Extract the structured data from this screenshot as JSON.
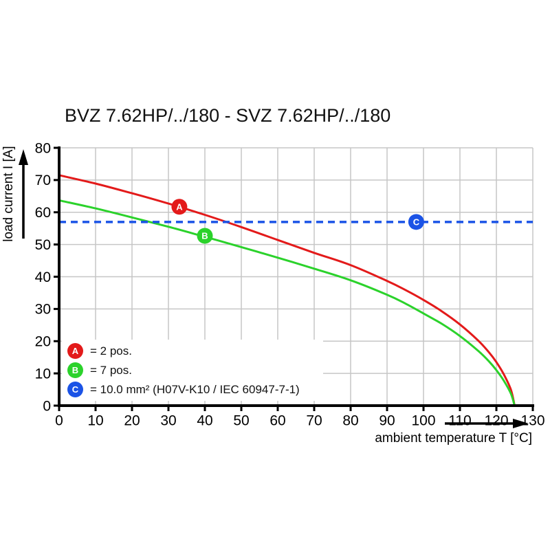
{
  "chart_data": {
    "type": "line",
    "title": "BVZ 7.62HP/../180 - SVZ 7.62HP/../180",
    "xlabel": "ambient temperature T [°C]",
    "ylabel": "load current I [A]",
    "xlim": [
      0,
      130
    ],
    "ylim": [
      0,
      80
    ],
    "xticks": [
      0,
      10,
      20,
      30,
      40,
      50,
      60,
      70,
      80,
      90,
      100,
      110,
      120,
      130
    ],
    "yticks": [
      0,
      10,
      20,
      30,
      40,
      50,
      60,
      70,
      80
    ],
    "grid": true,
    "legend_position": "bottom-left",
    "series": [
      {
        "name": "A",
        "legend_label": "= 2 pos.",
        "color": "#e31a1a",
        "style": "solid",
        "points": [
          [
            0,
            71.5
          ],
          [
            10,
            68.9
          ],
          [
            20,
            65.9
          ],
          [
            30,
            62.7
          ],
          [
            40,
            59.2
          ],
          [
            50,
            55.4
          ],
          [
            60,
            51.4
          ],
          [
            70,
            47.4
          ],
          [
            80,
            43.6
          ],
          [
            90,
            38.7
          ],
          [
            95,
            35.9
          ],
          [
            100,
            32.8
          ],
          [
            105,
            29.3
          ],
          [
            110,
            25.2
          ],
          [
            115,
            20.2
          ],
          [
            118,
            16.5
          ],
          [
            120,
            13.5
          ],
          [
            122,
            9.8
          ],
          [
            124,
            4.9
          ],
          [
            125,
            0
          ]
        ]
      },
      {
        "name": "B",
        "legend_label": "= 7 pos.",
        "color": "#2bd22b",
        "style": "solid",
        "points": [
          [
            0,
            63.7
          ],
          [
            10,
            61.2
          ],
          [
            20,
            58.4
          ],
          [
            30,
            55.5
          ],
          [
            40,
            52.4
          ],
          [
            50,
            49.2
          ],
          [
            60,
            45.9
          ],
          [
            70,
            42.5
          ],
          [
            80,
            38.9
          ],
          [
            90,
            34.4
          ],
          [
            95,
            31.7
          ],
          [
            100,
            28.6
          ],
          [
            105,
            25.4
          ],
          [
            110,
            21.6
          ],
          [
            115,
            17.0
          ],
          [
            118,
            13.7
          ],
          [
            120,
            11.0
          ],
          [
            122,
            7.8
          ],
          [
            124,
            3.7
          ],
          [
            125,
            0
          ]
        ]
      },
      {
        "name": "C",
        "legend_label": "= 10.0 mm² (H07V-K10 / IEC 60947-7-1)",
        "color": "#1b53e6",
        "style": "dashed",
        "points": [
          [
            0,
            57
          ],
          [
            130,
            57
          ]
        ]
      }
    ],
    "markers": [
      {
        "name": "A",
        "x": 33,
        "y": 61.7,
        "color": "#e31a1a"
      },
      {
        "name": "B",
        "x": 40,
        "y": 52.7,
        "color": "#2bd22b"
      },
      {
        "name": "C",
        "x": 98,
        "y": 57,
        "color": "#1b53e6"
      }
    ]
  },
  "colors": {
    "grid": "#c6c6c6",
    "axis": "#000000",
    "text": "#111111",
    "background": "#ffffff"
  }
}
